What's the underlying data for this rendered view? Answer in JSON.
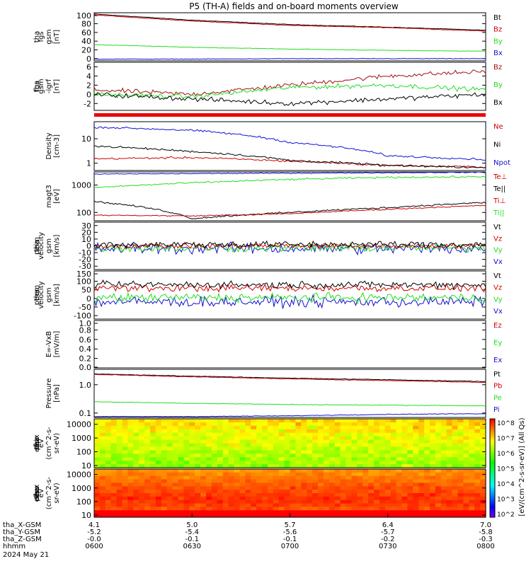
{
  "title": "P5 (TH-A) fields and on-board moments overview",
  "colors": {
    "black": "#000000",
    "red": "#d00000",
    "dkred": "#a01010",
    "green": "#22dd22",
    "blue": "#1010d0"
  },
  "panels": [
    {
      "id": "fgs-gsm",
      "ylabel": [
        "tha",
        "fgs",
        "gsm",
        "[nT]"
      ],
      "scale": "linear",
      "ylim": [
        -5,
        105
      ],
      "yticks": [
        "100",
        "80",
        "60",
        "40",
        "20",
        "0"
      ],
      "legend": [
        {
          "text": "Bt",
          "color": "#000000"
        },
        {
          "text": "Bz",
          "color": "#d00000"
        },
        {
          "text": "By",
          "color": "#22dd22"
        },
        {
          "text": "Bx",
          "color": "#1010d0"
        }
      ]
    },
    {
      "id": "fgs-gsm-igrf",
      "ylabel": [
        "tha",
        "fgs",
        "gsm",
        "-igrf",
        "[nT]"
      ],
      "scale": "linear",
      "ylim": [
        -3.5,
        7
      ],
      "yticks": [
        "6",
        "4",
        "2",
        "0",
        "-2"
      ],
      "legend": [
        {
          "text": "Bz",
          "color": "#a01010"
        },
        {
          "text": "By",
          "color": "#22dd22"
        },
        {
          "text": "Bx",
          "color": "#000000"
        }
      ]
    },
    {
      "id": "density",
      "ylabel": [
        "Density",
        "[cm-3]"
      ],
      "scale": "log",
      "ylim": [
        0.5,
        50
      ],
      "yticks": [
        "10",
        "1"
      ],
      "legend": [
        {
          "text": "Ne",
          "color": "#d00000"
        },
        {
          "text": "Ni",
          "color": "#000000"
        },
        {
          "text": "Npot",
          "color": "#1010d0"
        }
      ]
    },
    {
      "id": "temperature",
      "ylabel": [
        "magt3",
        "[eV]"
      ],
      "scale": "log",
      "ylim": [
        50,
        3000
      ],
      "yticks": [
        "1000",
        "100"
      ],
      "legend": [
        {
          "text": "Te⊥",
          "color": "#d00000"
        },
        {
          "text": "Te||",
          "color": "#000000"
        },
        {
          "text": "Ti⊥",
          "color": "#d00000"
        },
        {
          "text": "Ti||",
          "color": "#22dd22"
        }
      ]
    },
    {
      "id": "peim-velocity",
      "ylabel": [
        "tha",
        "peim",
        "velocity",
        "gsm",
        "[km/s]"
      ],
      "scale": "linear",
      "ylim": [
        -35,
        35
      ],
      "yticks": [
        "30",
        "20",
        "10",
        "0",
        "-10",
        "-20",
        "-30"
      ],
      "legend": [
        {
          "text": "Vt",
          "color": "#000000"
        },
        {
          "text": "Vz",
          "color": "#d00000"
        },
        {
          "text": "Vy",
          "color": "#22dd22"
        },
        {
          "text": "Vx",
          "color": "#1010d0"
        }
      ]
    },
    {
      "id": "peem-velocity",
      "ylabel": [
        "tha",
        "peem",
        "velocity",
        "gsm",
        "[km/s]"
      ],
      "scale": "linear",
      "ylim": [
        -120,
        160
      ],
      "yticks": [
        "150",
        "100",
        "50",
        "0",
        "-50",
        "-100"
      ],
      "legend": [
        {
          "text": "Vt",
          "color": "#000000"
        },
        {
          "text": "Vz",
          "color": "#d00000"
        },
        {
          "text": "Vy",
          "color": "#22dd22"
        },
        {
          "text": "Vx",
          "color": "#1010d0"
        }
      ]
    },
    {
      "id": "efield",
      "ylabel": [
        "E=-VxB",
        "[mV/m]"
      ],
      "scale": "linear",
      "ylim": [
        0,
        1
      ],
      "yticks": [
        "1.0",
        "0.8",
        "0.6",
        "0.4",
        "0.2",
        "0.0"
      ],
      "legend": [
        {
          "text": "Ez",
          "color": "#d00000"
        },
        {
          "text": "Ey",
          "color": "#22dd22"
        },
        {
          "text": "Ex",
          "color": "#1010d0"
        }
      ]
    },
    {
      "id": "pressure",
      "ylabel": [
        "Pressure",
        "[nPa]"
      ],
      "scale": "log",
      "ylim": [
        0.07,
        3.5
      ],
      "yticks": [
        "1.0",
        "0.1"
      ],
      "legend": [
        {
          "text": "Pt",
          "color": "#000000"
        },
        {
          "text": "Pb",
          "color": "#d00000"
        },
        {
          "text": "Pe",
          "color": "#22dd22"
        },
        {
          "text": "Pi",
          "color": "#1010d0"
        }
      ]
    },
    {
      "id": "peir-spec",
      "ylabel": [
        "tha",
        "peir",
        "en",
        "eflux",
        "eV",
        "(cm^2-s-",
        "sr-eV)"
      ],
      "scale": "log",
      "ylim": [
        7,
        25000
      ],
      "yticks": [
        "10000",
        "1000",
        "100",
        "10"
      ],
      "legend": []
    },
    {
      "id": "peer-spec",
      "ylabel": [
        "tha",
        "peer",
        "en",
        "eflux",
        "eV",
        "(cm^2-s-",
        "sr-eV)"
      ],
      "scale": "log",
      "ylim": [
        7,
        25000
      ],
      "yticks": [
        "10000",
        "1000",
        "100",
        "10"
      ],
      "legend": []
    }
  ],
  "colorbar": {
    "label": "[eV/(cm^2-s-sr-eV)] (All Qs)",
    "ticks": [
      "10^8",
      "10^7",
      "10^6",
      "10^5",
      "10^4",
      "10^3",
      "10^2"
    ]
  },
  "xaxis": {
    "rows": [
      {
        "label": "tha_X-GSM",
        "values": [
          "4.1",
          "5.0",
          "5.7",
          "6.4",
          "7.0"
        ]
      },
      {
        "label": "tha_Y-GSM",
        "values": [
          "-5.2",
          "-5.4",
          "-5.6",
          "-5.7",
          "-5.8"
        ]
      },
      {
        "label": "tha_Z-GSM",
        "values": [
          "-0.0",
          "-0.1",
          "-0.1",
          "-0.2",
          "-0.3"
        ]
      },
      {
        "label": "hhmm",
        "values": [
          "0600",
          "0630",
          "0700",
          "0730",
          "0800"
        ]
      }
    ],
    "date": "2024 May 21"
  },
  "chart_data": {
    "type": "line",
    "x_time": [
      "0600",
      "0630",
      "0700",
      "0730",
      "0800"
    ],
    "series": [
      {
        "panel": "fgs-gsm",
        "name": "Bt",
        "values": [
          102,
          88,
          78,
          72,
          65
        ]
      },
      {
        "panel": "fgs-gsm",
        "name": "Bz",
        "values": [
          100,
          86,
          76,
          71,
          63
        ]
      },
      {
        "panel": "fgs-gsm",
        "name": "By",
        "values": [
          32,
          26,
          22,
          19,
          17
        ]
      },
      {
        "panel": "fgs-gsm",
        "name": "Bx",
        "values": [
          -1,
          -1,
          0,
          0,
          0
        ]
      },
      {
        "panel": "fgs-gsm-igrf",
        "name": "Bz",
        "values": [
          1,
          0,
          2,
          4,
          5
        ]
      },
      {
        "panel": "fgs-gsm-igrf",
        "name": "By",
        "values": [
          0,
          -0.5,
          1.5,
          2,
          1
        ]
      },
      {
        "panel": "fgs-gsm-igrf",
        "name": "Bx",
        "values": [
          0,
          -1,
          -2,
          -1,
          0
        ]
      },
      {
        "panel": "density",
        "name": "Ne",
        "values": [
          1.5,
          1.7,
          1.2,
          0.8,
          0.7
        ]
      },
      {
        "panel": "density",
        "name": "Ni",
        "values": [
          5,
          3,
          1.3,
          0.8,
          0.65
        ]
      },
      {
        "panel": "density",
        "name": "Npot",
        "values": [
          30,
          22,
          7,
          2,
          1.4
        ]
      },
      {
        "panel": "temperature",
        "name": "Te||",
        "values": [
          250,
          60,
          100,
          150,
          230
        ]
      },
      {
        "panel": "temperature",
        "name": "Ti||",
        "values": [
          800,
          1200,
          1600,
          1900,
          2000
        ]
      },
      {
        "panel": "pressure",
        "name": "Pt",
        "values": [
          2.4,
          2.0,
          1.7,
          1.5,
          1.3
        ]
      },
      {
        "panel": "pressure",
        "name": "Pb",
        "values": [
          2.3,
          1.9,
          1.6,
          1.4,
          1.2
        ]
      },
      {
        "panel": "pressure",
        "name": "Pe",
        "values": [
          0.25,
          0.22,
          0.2,
          0.19,
          0.18
        ]
      },
      {
        "panel": "pressure",
        "name": "Pi",
        "values": [
          0.075,
          0.075,
          0.08,
          0.09,
          0.095
        ]
      }
    ]
  }
}
